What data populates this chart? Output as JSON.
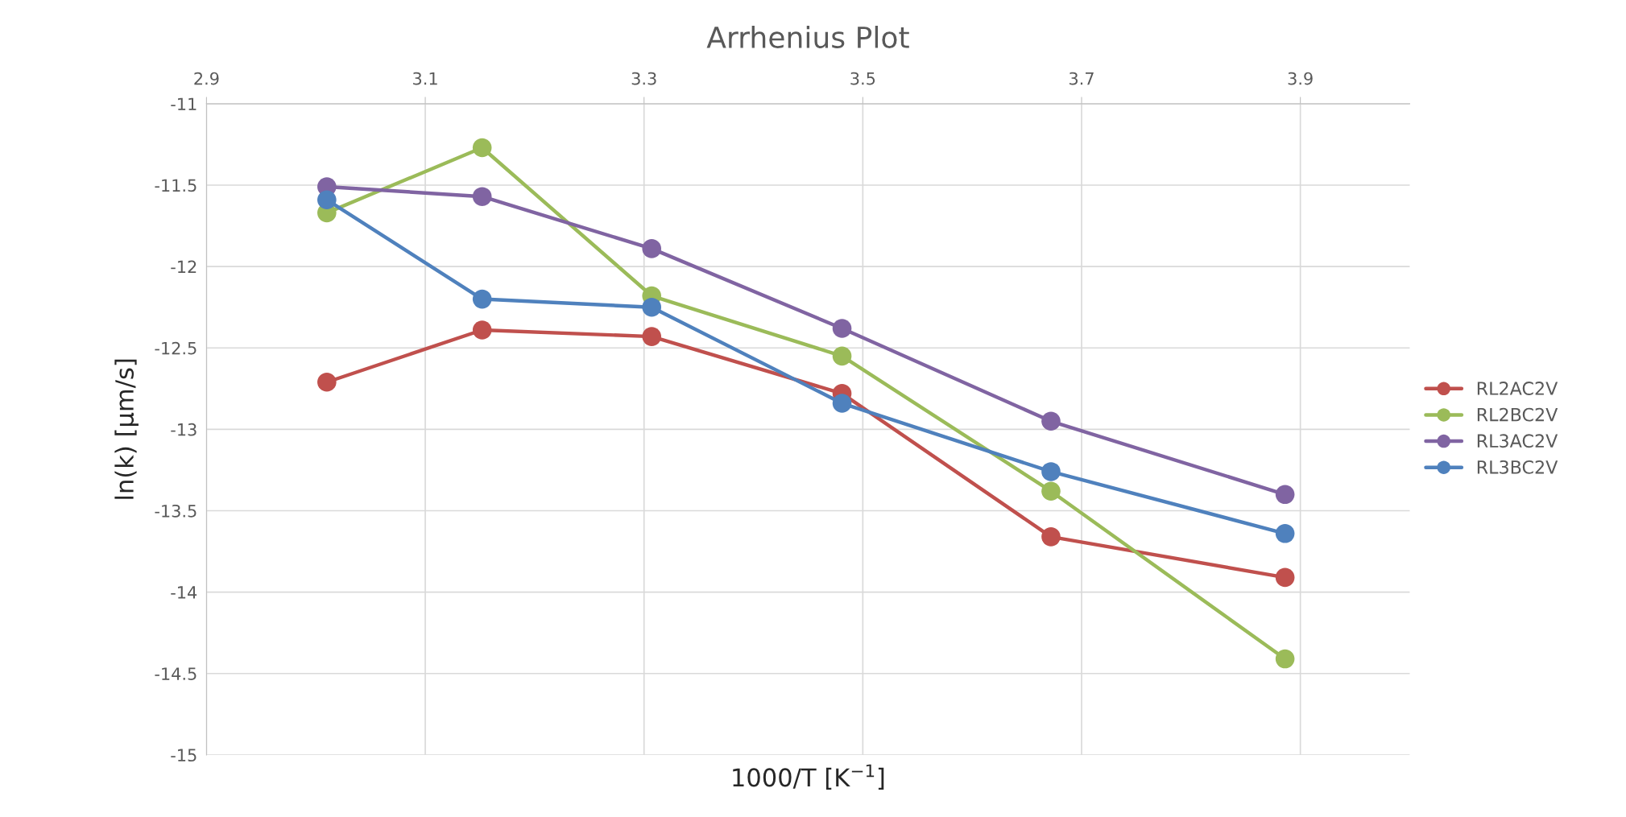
{
  "chart_data": {
    "type": "line",
    "title": "Arrhenius Plot",
    "xlabel": "1000/T [K$^{−1}$]",
    "ylabel": "ln(k) [µm/s]",
    "x": [
      3.01,
      3.152,
      3.307,
      3.481,
      3.672,
      3.886
    ],
    "series": [
      {
        "name": "RL2AC2V",
        "color": "#c0504d",
        "values": [
          -12.71,
          -12.39,
          -12.43,
          -12.78,
          -13.66,
          -13.91
        ]
      },
      {
        "name": "RL2BC2V",
        "color": "#9bbb59",
        "values": [
          -11.67,
          -11.27,
          -12.18,
          -12.55,
          -13.38,
          -14.41
        ]
      },
      {
        "name": "RL3AC2V",
        "color": "#8064a2",
        "values": [
          -11.51,
          -11.57,
          -11.89,
          -12.38,
          -12.95,
          -13.4
        ]
      },
      {
        "name": "RL3BC2V",
        "color": "#4f81bd",
        "values": [
          -11.59,
          -12.2,
          -12.25,
          -12.84,
          -13.26,
          -13.64
        ]
      }
    ],
    "xlim": [
      2.9,
      4.0
    ],
    "xticks": [
      2.9,
      3.1,
      3.3,
      3.5,
      3.7,
      3.9
    ],
    "ylim": [
      -15,
      -11
    ],
    "yticks": [
      -15,
      -14.5,
      -14,
      -13.5,
      -13,
      -12.5,
      -12,
      -11.5,
      -11
    ],
    "grid": true,
    "legend": "right",
    "marker": "circle",
    "line_style": "solid"
  }
}
